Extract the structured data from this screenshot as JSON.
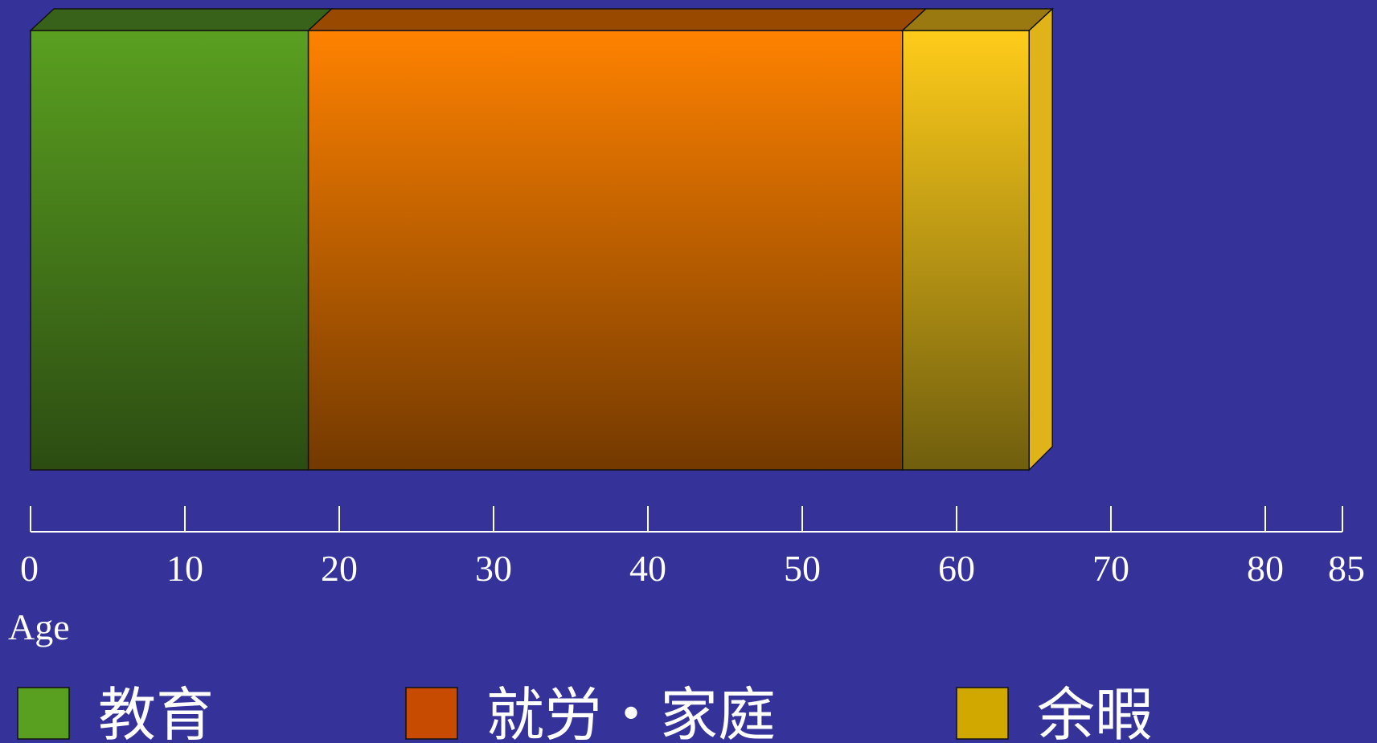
{
  "chart_data": {
    "type": "bar",
    "orientation": "horizontal-stacked",
    "categories": [
      "Age"
    ],
    "series": [
      {
        "name": "教育",
        "start": 0,
        "end": 18,
        "color": "#5aa020",
        "colorDark": "#2c4c12",
        "topColor": "#38621a",
        "legendColor": "#5aa020"
      },
      {
        "name": "就労・家庭",
        "start": 18,
        "end": 56.5,
        "color": "#ff8200",
        "colorDark": "#733900",
        "topColor": "#9a4a00",
        "legendColor": "#c84b02"
      },
      {
        "name": "余暇",
        "start": 56.5,
        "end": 64.7,
        "color": "#ffcc1a",
        "colorDark": "#705e0e",
        "topColor": "#9a7a10",
        "sideColor": "#e0b418",
        "legendColor": "#d0a800"
      }
    ],
    "xlabel": "Age",
    "xlim": [
      0,
      85
    ],
    "xticks": [
      0,
      10,
      20,
      30,
      40,
      50,
      60,
      70,
      80,
      85
    ],
    "grid": false,
    "legend": "bottom"
  }
}
